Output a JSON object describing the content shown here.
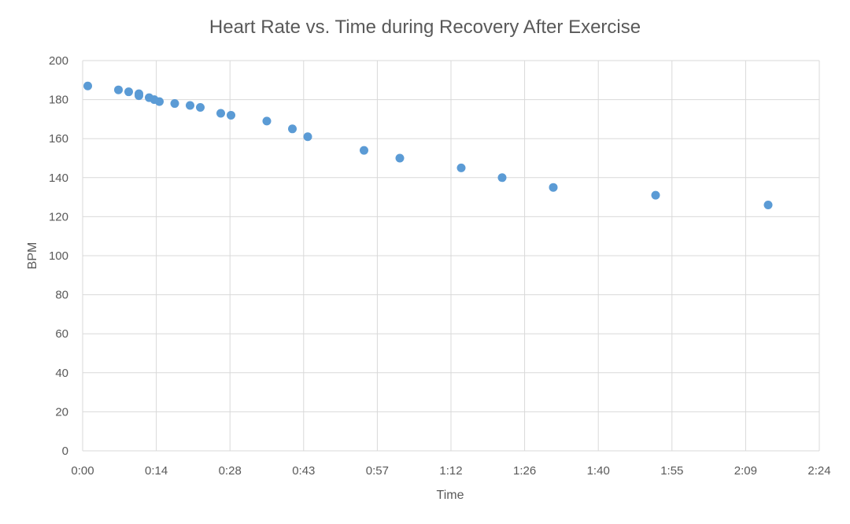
{
  "chart_data": {
    "type": "scatter",
    "title": "Heart Rate vs. Time during Recovery After Exercise",
    "xlabel": "Time",
    "ylabel": "BPM",
    "x_unit": "seconds",
    "xlim": [
      0,
      144
    ],
    "ylim": [
      0,
      200
    ],
    "x_ticks": [
      0,
      14.4,
      28.8,
      43.2,
      57.6,
      72,
      86.4,
      100.8,
      115.2,
      129.6,
      144
    ],
    "x_tick_labels": [
      "0:00",
      "0:14",
      "0:28",
      "0:43",
      "0:57",
      "1:12",
      "1:26",
      "1:40",
      "1:55",
      "2:09",
      "2:24"
    ],
    "y_ticks": [
      0,
      20,
      40,
      60,
      80,
      100,
      120,
      140,
      160,
      180,
      200
    ],
    "grid": true,
    "legend": "none",
    "point_color": "#5b9bd5",
    "x": [
      1,
      7,
      9,
      11,
      11,
      13,
      14,
      15,
      18,
      21,
      23,
      27,
      29,
      36,
      41,
      44,
      55,
      62,
      74,
      82,
      92,
      112,
      134
    ],
    "y": [
      187,
      185,
      184,
      183,
      182,
      181,
      180,
      179,
      178,
      177,
      176,
      173,
      172,
      169,
      165,
      161,
      154,
      150,
      145,
      140,
      135,
      131,
      126
    ]
  }
}
